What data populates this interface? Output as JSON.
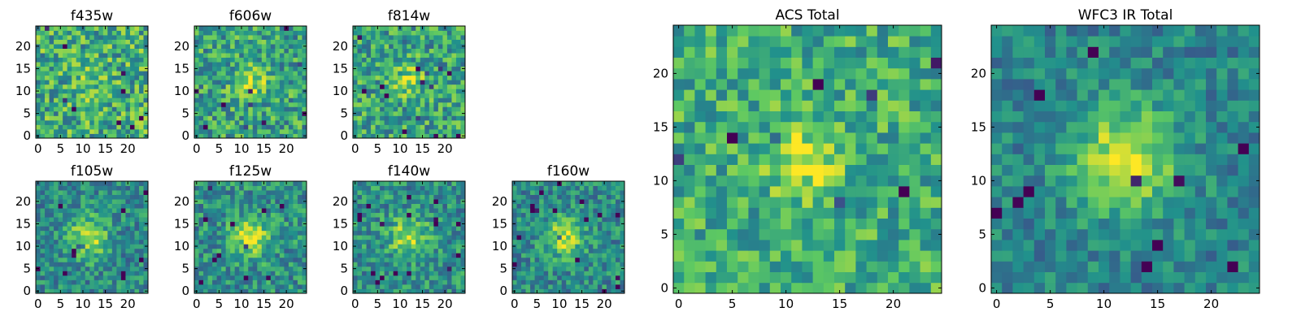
{
  "figure": {
    "colormap": "viridis",
    "colormap_stops": [
      "#440154",
      "#3b528b",
      "#21918c",
      "#5ec962",
      "#fde725"
    ]
  },
  "chart_data": [
    {
      "type": "heatmap",
      "title": "f435w",
      "size": 25,
      "xticks": [
        "0",
        "5",
        "10",
        "15",
        "20"
      ],
      "yticks": [
        "0",
        "5",
        "10",
        "15",
        "20"
      ],
      "xlim": [
        0,
        24
      ],
      "ylim": [
        0,
        24
      ],
      "pattern": {
        "base": 0.62,
        "noise": 0.28,
        "blob": [
          12,
          12,
          3.0,
          0.1
        ]
      }
    },
    {
      "type": "heatmap",
      "title": "f606w",
      "size": 25,
      "xticks": [
        "0",
        "5",
        "10",
        "15",
        "20"
      ],
      "yticks": [
        "0",
        "5",
        "10",
        "15",
        "20"
      ],
      "xlim": [
        0,
        24
      ],
      "ylim": [
        0,
        24
      ],
      "pattern": {
        "base": 0.58,
        "noise": 0.26,
        "blob": [
          12,
          12,
          2.4,
          0.32
        ]
      }
    },
    {
      "type": "heatmap",
      "title": "f814w",
      "size": 25,
      "xticks": [
        "0",
        "5",
        "10",
        "15",
        "20"
      ],
      "yticks": [
        "0",
        "5",
        "10",
        "15",
        "20"
      ],
      "xlim": [
        0,
        24
      ],
      "ylim": [
        0,
        24
      ],
      "pattern": {
        "base": 0.58,
        "noise": 0.26,
        "blob": [
          12,
          12,
          2.4,
          0.3
        ]
      }
    },
    {
      "type": "heatmap",
      "title": "f105w",
      "size": 25,
      "xticks": [
        "0",
        "5",
        "10",
        "15",
        "20"
      ],
      "yticks": [
        "0",
        "5",
        "10",
        "15",
        "20"
      ],
      "xlim": [
        0,
        24
      ],
      "ylim": [
        0,
        24
      ],
      "pattern": {
        "base": 0.48,
        "noise": 0.2,
        "blob": [
          11,
          12,
          3.2,
          0.4
        ]
      }
    },
    {
      "type": "heatmap",
      "title": "f125w",
      "size": 25,
      "xticks": [
        "0",
        "5",
        "10",
        "15",
        "20"
      ],
      "yticks": [
        "0",
        "5",
        "10",
        "15",
        "20"
      ],
      "xlim": [
        0,
        24
      ],
      "ylim": [
        0,
        24
      ],
      "pattern": {
        "base": 0.5,
        "noise": 0.22,
        "blob": [
          12,
          12,
          3.0,
          0.38
        ]
      }
    },
    {
      "type": "heatmap",
      "title": "f140w",
      "size": 25,
      "xticks": [
        "0",
        "5",
        "10",
        "15",
        "20"
      ],
      "yticks": [
        "0",
        "5",
        "10",
        "15",
        "20"
      ],
      "xlim": [
        0,
        24
      ],
      "ylim": [
        0,
        24
      ],
      "pattern": {
        "base": 0.5,
        "noise": 0.22,
        "blob": [
          12,
          12,
          3.0,
          0.36
        ]
      }
    },
    {
      "type": "heatmap",
      "title": "f160w",
      "size": 25,
      "xticks": [
        "0",
        "5",
        "10",
        "15",
        "20"
      ],
      "yticks": [
        "0",
        "5",
        "10",
        "15",
        "20"
      ],
      "xlim": [
        0,
        24
      ],
      "ylim": [
        0,
        24
      ],
      "pattern": {
        "base": 0.48,
        "noise": 0.2,
        "blob": [
          11,
          12,
          3.0,
          0.42
        ]
      }
    },
    {
      "type": "heatmap",
      "title": "ACS Total",
      "size": 25,
      "xticks": [
        "0",
        "5",
        "10",
        "15",
        "20"
      ],
      "yticks": [
        "0",
        "5",
        "10",
        "15",
        "20"
      ],
      "xlim": [
        0,
        24
      ],
      "ylim": [
        0,
        24
      ],
      "pattern": {
        "base": 0.62,
        "noise": 0.22,
        "blob": [
          12,
          12,
          2.6,
          0.3
        ]
      }
    },
    {
      "type": "heatmap",
      "title": "WFC3 IR Total",
      "size": 25,
      "xticks": [
        "0",
        "5",
        "10",
        "15",
        "20"
      ],
      "yticks": [
        "0",
        "5",
        "10",
        "15",
        "20"
      ],
      "xlim": [
        0,
        24
      ],
      "ylim": [
        0,
        24
      ],
      "pattern": {
        "base": 0.45,
        "noise": 0.16,
        "blob": [
          12,
          12,
          3.4,
          0.5
        ]
      }
    }
  ]
}
